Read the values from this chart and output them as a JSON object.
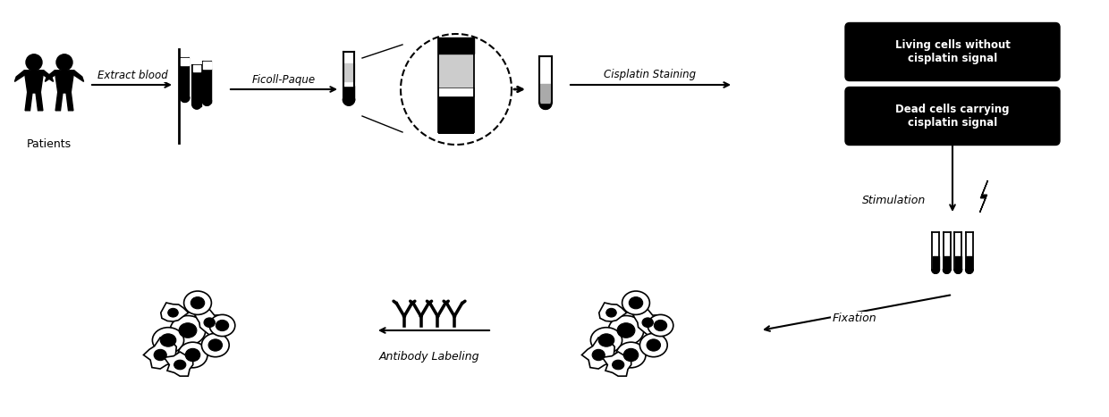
{
  "bg_color": "#ffffff",
  "text_color": "#000000",
  "box_color": "#111111",
  "box_text_color": "#ffffff",
  "labels": {
    "patients": "Patients",
    "extract_blood": "Extract blood",
    "ficoll_paque": "Ficoll-Paque",
    "cisplatin_staining": "Cisplatin Staining",
    "living_cells": "Living cells without\ncisplatin signal",
    "dead_cells": "Dead cells carrying\ncisplatin signal",
    "stimulation": "Stimulation",
    "fixation": "Fixation",
    "antibody_labeling": "Antibody Labeling"
  },
  "figsize": [
    12.4,
    4.67
  ],
  "dpi": 100
}
